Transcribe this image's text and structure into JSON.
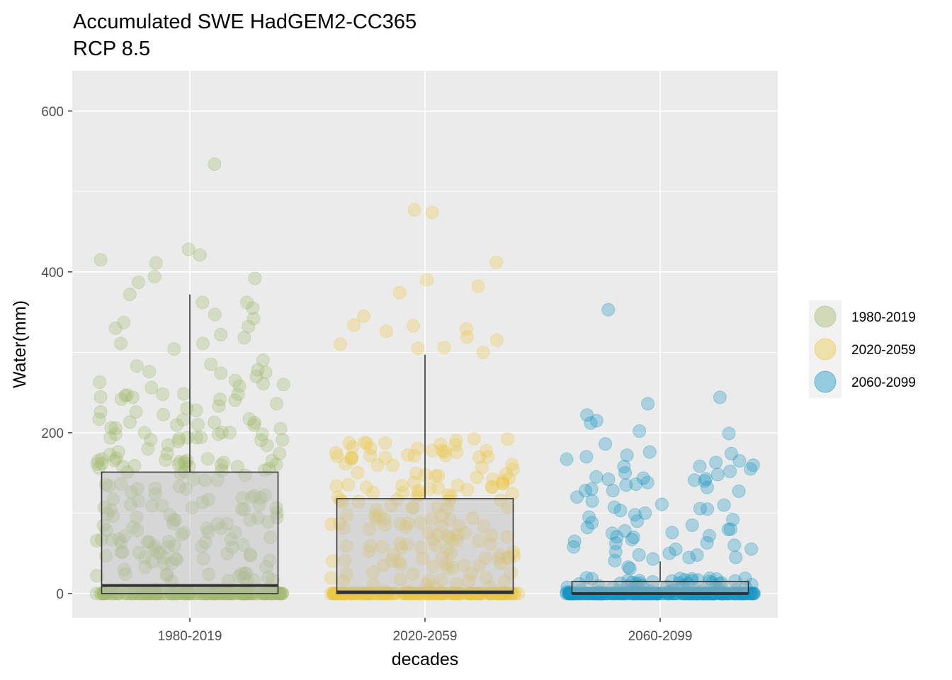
{
  "chart_data": {
    "type": "box-jitter",
    "title": "Accumulated SWE HadGEM2-CC365",
    "subtitle": "RCP 8.5",
    "xlabel": "decades",
    "ylabel": "Water(mm)",
    "ylim": [
      -30,
      650
    ],
    "y_ticks": [
      0,
      200,
      400,
      600
    ],
    "grid": true,
    "legend_position": "right",
    "categories": [
      "1980-2019",
      "2020-2059",
      "2060-2099"
    ],
    "colors": [
      "#A3B86C",
      "#EBC844",
      "#1696C4"
    ],
    "boxes": [
      {
        "category": "1980-2019",
        "min": 0,
        "q1": 0,
        "median": 10,
        "q3": 151,
        "max": 372
      },
      {
        "category": "2020-2059",
        "min": 0,
        "q1": 0,
        "median": 2,
        "q3": 118,
        "max": 297
      },
      {
        "category": "2060-2099",
        "min": 0,
        "q1": 0,
        "median": 0,
        "q3": 15,
        "max": 40
      }
    ],
    "outliers": [
      {
        "category": "1980-2019",
        "values": [
          534,
          428,
          421,
          415,
          411,
          394,
          392,
          387,
          372,
          362,
          362,
          355,
          347,
          342,
          337,
          332,
          330,
          322,
          318,
          311,
          311,
          304,
          290,
          285,
          283,
          278,
          276,
          275,
          274,
          270,
          265,
          263,
          261,
          260,
          258,
          256,
          247,
          246,
          244
        ]
      },
      {
        "category": "2020-2059",
        "values": [
          477,
          474,
          412,
          390,
          382,
          374,
          345,
          334,
          333,
          329,
          326,
          319,
          315,
          310,
          306,
          305,
          300
        ]
      },
      {
        "category": "2060-2099",
        "values": [
          353,
          244,
          236,
          222,
          215,
          212,
          202,
          199,
          186,
          176,
          174,
          172,
          170,
          167,
          165,
          158,
          155,
          152,
          150,
          148,
          145,
          140,
          138,
          136,
          135,
          132,
          130,
          128,
          128,
          120,
          115,
          110,
          105,
          100,
          98,
          95,
          92,
          90,
          88,
          85,
          82,
          80,
          78,
          75,
          72,
          70,
          65,
          63,
          60,
          58,
          55,
          52,
          50,
          48,
          45,
          43
        ]
      }
    ],
    "point_count_per_decade": 365
  }
}
